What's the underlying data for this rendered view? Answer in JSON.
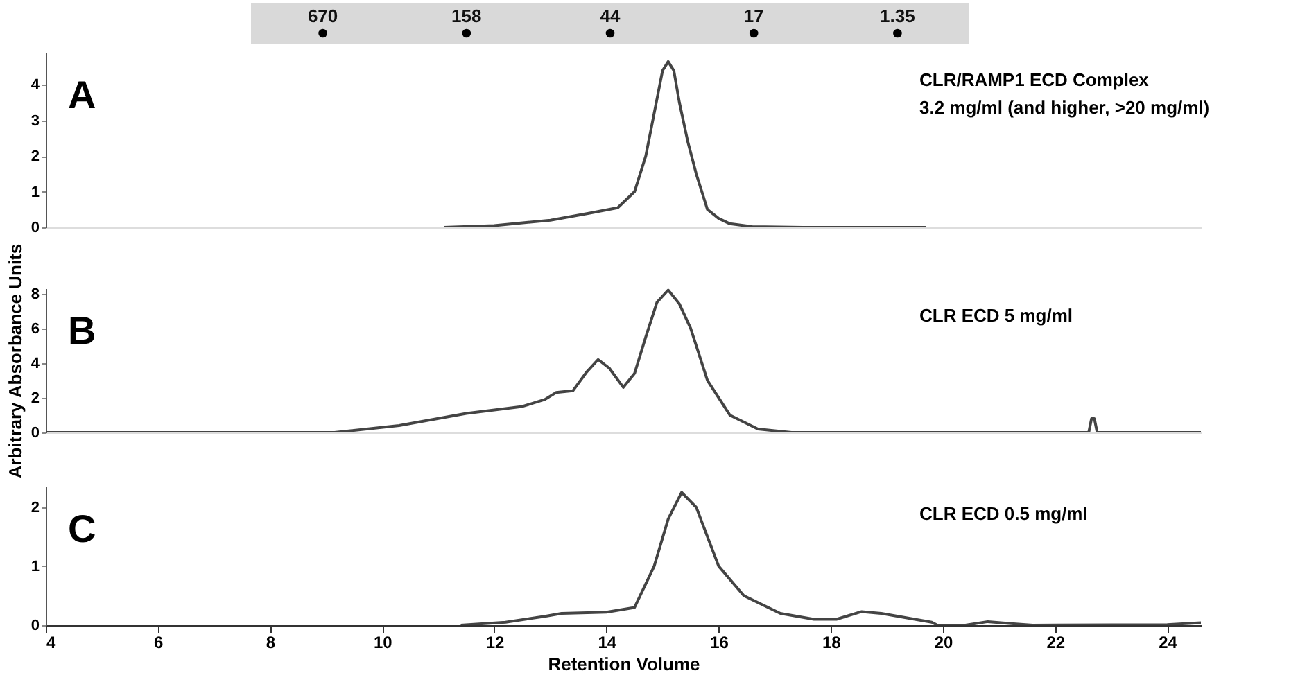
{
  "chart_data": [
    {
      "type": "other",
      "annotations": [
        "670",
        "158",
        "44",
        "17",
        "1.35"
      ]
    },
    {
      "type": "line",
      "xlim": [
        4,
        24.6
      ],
      "ylim": [
        0,
        4.9
      ],
      "yticks": [
        0,
        1,
        2,
        3,
        4
      ],
      "tick_labels": "y",
      "annotations": [
        "A",
        "CLR/RAMP1 ECD Complex\n3.2 mg/ml (and higher, >20 mg/ml)"
      ],
      "series": [
        {
          "color": "#444444",
          "x": [
            11.1,
            12,
            13,
            13.7,
            14.2,
            14.5,
            14.7,
            14.85,
            15.0,
            15.1,
            15.2,
            15.3,
            15.45,
            15.6,
            15.8,
            16.0,
            16.2,
            16.6,
            17.5,
            19.7
          ],
          "values": [
            0,
            0.05,
            0.2,
            0.4,
            0.55,
            1.0,
            2.0,
            3.2,
            4.4,
            4.65,
            4.4,
            3.5,
            2.4,
            1.5,
            0.5,
            0.25,
            0.1,
            0.02,
            0,
            0
          ]
        }
      ]
    },
    {
      "type": "line",
      "xlim": [
        4,
        24.6
      ],
      "ylim": [
        0,
        8.3
      ],
      "yticks": [
        0,
        2,
        4,
        6,
        8
      ],
      "tick_labels": "y",
      "ylabel": "Arbitrary Absorbance Units",
      "annotations": [
        "B",
        "CLR ECD 5 mg/ml"
      ],
      "series": [
        {
          "color": "#444444",
          "x": [
            4,
            9.15,
            10.3,
            11.5,
            12.5,
            12.9,
            13.1,
            13.4,
            13.65,
            13.85,
            14.05,
            14.3,
            14.5,
            14.7,
            14.9,
            15.1,
            15.3,
            15.5,
            15.8,
            16.2,
            16.7,
            17.3,
            22.6,
            22.65,
            22.7,
            22.75,
            24.6
          ],
          "values": [
            0,
            0,
            0.4,
            1.1,
            1.5,
            1.9,
            2.3,
            2.4,
            3.5,
            4.2,
            3.7,
            2.6,
            3.4,
            5.5,
            7.5,
            8.2,
            7.4,
            6.0,
            3.0,
            1.0,
            0.2,
            0,
            0,
            0.8,
            0.8,
            0,
            0
          ]
        }
      ]
    },
    {
      "type": "line",
      "xlim": [
        4,
        24.6
      ],
      "ylim": [
        0,
        2.35
      ],
      "yticks": [
        0,
        1,
        2
      ],
      "xticks": [
        4,
        6,
        8,
        10,
        12,
        14,
        16,
        18,
        20,
        22,
        24
      ],
      "xlabel": "Retention Volume",
      "annotations": [
        "C",
        "CLR ECD 0.5 mg/ml"
      ],
      "series": [
        {
          "color": "#444444",
          "x": [
            11.4,
            12.2,
            12.9,
            13.2,
            14,
            14.5,
            14.85,
            15.1,
            15.34,
            15.6,
            16.0,
            16.45,
            17.1,
            17.7,
            18.1,
            18.55,
            18.9,
            19.8,
            19.9,
            20.4,
            20.8,
            21.3,
            21.6,
            24,
            24.6
          ],
          "values": [
            0,
            0.05,
            0.15,
            0.2,
            0.22,
            0.3,
            1.0,
            1.8,
            2.25,
            2.0,
            1.0,
            0.5,
            0.2,
            0.1,
            0.1,
            0.23,
            0.2,
            0.05,
            0,
            0,
            0.06,
            0.02,
            0,
            0.01,
            0.04
          ]
        }
      ]
    }
  ]
}
